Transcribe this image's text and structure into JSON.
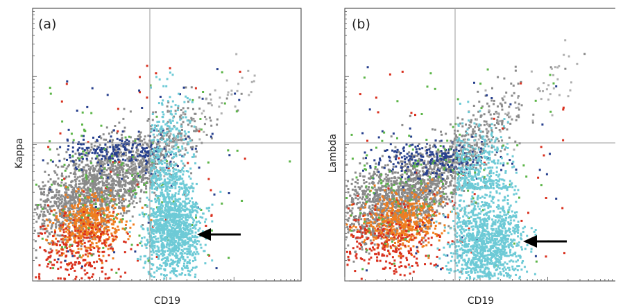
{
  "chart_data": [
    {
      "type": "scatter",
      "panel_label": "(a)",
      "xlabel": "CD19",
      "ylabel": "Kappa",
      "x_scale": "log",
      "y_scale": "log",
      "grid": false,
      "quadrant_gates": true,
      "annotation": "arrow pointing to the kappa-negative CD19-positive cyan population",
      "clusters": [
        {
          "population": "gray",
          "color": "#8a8a8a",
          "count": 1400
        },
        {
          "population": "orange",
          "color": "#f07d1e",
          "count": 500
        },
        {
          "population": "red",
          "color": "#d9301e",
          "count": 260
        },
        {
          "population": "navy",
          "color": "#27408e",
          "count": 220
        },
        {
          "population": "green",
          "color": "#5cb548",
          "count": 120
        },
        {
          "population": "cyan",
          "color": "#6dcad6",
          "count": 900
        }
      ]
    },
    {
      "type": "scatter",
      "panel_label": "(b)",
      "xlabel": "CD19",
      "ylabel": "Lambda",
      "x_scale": "log",
      "y_scale": "log",
      "grid": false,
      "quadrant_gates": true,
      "annotation": "arrow pointing to the lambda-negative CD19-positive cyan population",
      "clusters": [
        {
          "population": "gray",
          "color": "#8a8a8a",
          "count": 1400
        },
        {
          "population": "orange",
          "color": "#f07d1e",
          "count": 500
        },
        {
          "population": "red",
          "color": "#d9301e",
          "count": 280
        },
        {
          "population": "navy",
          "color": "#27408e",
          "count": 240
        },
        {
          "population": "green",
          "color": "#5cb548",
          "count": 120
        },
        {
          "population": "cyan",
          "color": "#6dcad6",
          "count": 900
        }
      ]
    }
  ]
}
